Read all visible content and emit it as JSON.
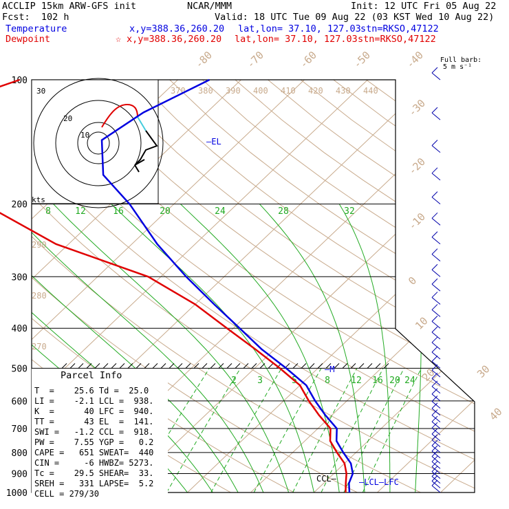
{
  "header": {
    "left1": "ACCLIP 15km ARW-GFS init",
    "center1": "NCAR/MMM",
    "right1": "Init: 12 UTC Fri 05 Aug 22",
    "left2": "Fcst:  102 h",
    "right2": "Valid: 18 UTC Tue 09 Aug 22 (03 KST Wed 10 Aug 22)"
  },
  "legend": {
    "temperature": {
      "label": "Temperature",
      "xy": "x,y=388.36,260.20",
      "latlon": "lat,lon= 37.10, 127.03",
      "stn": "stn=RKSO,47122",
      "color": "#0000e0"
    },
    "dewpoint": {
      "label": "Dewpoint",
      "star": "☆",
      "xy": "x,y=388.36,260.20",
      "latlon": "lat,lon= 37.10, 127.03",
      "stn": "stn=RKSO,47122",
      "color": "#e00000"
    }
  },
  "barb_legend": {
    "line1": "Full barb:",
    "line2": "5 m s⁻¹"
  },
  "hodograph": {
    "unit": "kts",
    "rings": [
      "10",
      "20",
      "30"
    ]
  },
  "parcel": {
    "title": "Parcel Info",
    "rows": [
      "T  =    25.6 Td =  25.0",
      "LI =    -2.1 LCL =  938.",
      "K  =      40 LFC =  940.",
      "TT =      43 EL  =  141.",
      "SWI =   -1.2 CCL =  918.",
      "PW =    7.55 YGP =   0.2",
      "CAPE =   651 SWEAT=  440",
      "CIN =     -6 HWBZ= 5273.",
      "Tc =    29.5 SHEAR=  33.",
      "SREH =   331 LAPSE=  5.2",
      "CELL = 279/30"
    ]
  },
  "chart_data": {
    "type": "line",
    "title": "",
    "ylabel": "",
    "pressure_levels": [
      100,
      200,
      300,
      400,
      500,
      600,
      700,
      800,
      900,
      1000
    ],
    "dry_adiabat_labels": [
      "370",
      "380",
      "390",
      "400",
      "410",
      "420",
      "430",
      "440",
      "290",
      "280",
      "270"
    ],
    "isotherm_labels_upper": [
      "-80",
      "-70",
      "-60",
      "-50",
      "-40",
      "-30",
      "-20",
      "-10",
      "0",
      "10",
      "20",
      "30",
      "40"
    ],
    "moist_adiabat_labels": [
      "8",
      "12",
      "16",
      "20",
      "24",
      "28",
      "32"
    ],
    "mixing_ratio_labels": [
      "2",
      "3",
      "5",
      "8",
      "12",
      "16",
      "20",
      "24"
    ],
    "markers": {
      "el": "EL",
      "m": "M",
      "ccl": "CCL",
      "lcl": "LCL",
      "lfc": "LFC"
    },
    "series": [
      {
        "name": "Temperature",
        "color": "#0000e0",
        "points": [
          [
            100,
            -65
          ],
          [
            120,
            -70
          ],
          [
            140,
            -72
          ],
          [
            170,
            -66
          ],
          [
            200,
            -57
          ],
          [
            250,
            -46
          ],
          [
            300,
            -36
          ],
          [
            350,
            -27
          ],
          [
            400,
            -19
          ],
          [
            450,
            -12
          ],
          [
            500,
            -5
          ],
          [
            550,
            1
          ],
          [
            600,
            5
          ],
          [
            650,
            9
          ],
          [
            700,
            13
          ],
          [
            750,
            15
          ],
          [
            800,
            18
          ],
          [
            850,
            21
          ],
          [
            900,
            23
          ],
          [
            950,
            24
          ],
          [
            1000,
            25.6
          ]
        ]
      },
      {
        "name": "Dewpoint",
        "color": "#e00000",
        "points": [
          [
            100,
            -95
          ],
          [
            110,
            -100
          ],
          [
            120,
            -96
          ],
          [
            140,
            -90
          ],
          [
            160,
            -85
          ],
          [
            180,
            -84
          ],
          [
            200,
            -80
          ],
          [
            250,
            -62
          ],
          [
            300,
            -42
          ],
          [
            350,
            -30
          ],
          [
            400,
            -21
          ],
          [
            450,
            -13
          ],
          [
            500,
            -6
          ],
          [
            550,
            0
          ],
          [
            600,
            4
          ],
          [
            650,
            8
          ],
          [
            700,
            12
          ],
          [
            750,
            14
          ],
          [
            800,
            17
          ],
          [
            850,
            20
          ],
          [
            900,
            22
          ],
          [
            950,
            23.5
          ],
          [
            1000,
            25
          ]
        ]
      }
    ]
  }
}
